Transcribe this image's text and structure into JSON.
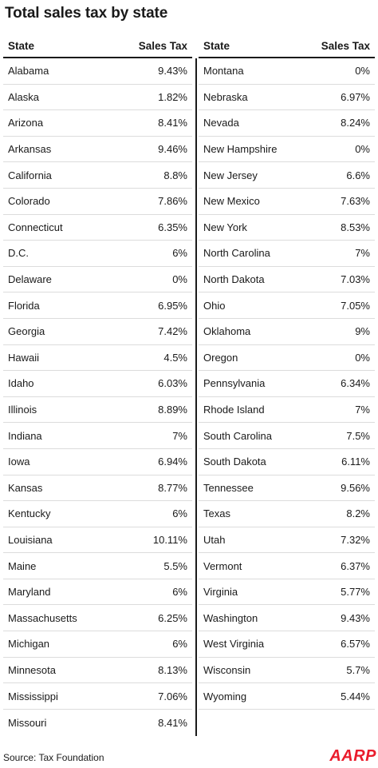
{
  "title": "Total sales tax by state",
  "header": {
    "state": "State",
    "tax": "Sales Tax"
  },
  "left": [
    {
      "state": "Alabama",
      "tax": "9.43%"
    },
    {
      "state": "Alaska",
      "tax": "1.82%"
    },
    {
      "state": "Arizona",
      "tax": "8.41%"
    },
    {
      "state": "Arkansas",
      "tax": "9.46%"
    },
    {
      "state": "California",
      "tax": "8.8%"
    },
    {
      "state": "Colorado",
      "tax": "7.86%"
    },
    {
      "state": "Connecticut",
      "tax": "6.35%"
    },
    {
      "state": "D.C.",
      "tax": "6%"
    },
    {
      "state": "Delaware",
      "tax": "0%"
    },
    {
      "state": "Florida",
      "tax": "6.95%"
    },
    {
      "state": "Georgia",
      "tax": "7.42%"
    },
    {
      "state": "Hawaii",
      "tax": "4.5%"
    },
    {
      "state": "Idaho",
      "tax": "6.03%"
    },
    {
      "state": "Illinois",
      "tax": "8.89%"
    },
    {
      "state": "Indiana",
      "tax": "7%"
    },
    {
      "state": "Iowa",
      "tax": "6.94%"
    },
    {
      "state": "Kansas",
      "tax": "8.77%"
    },
    {
      "state": "Kentucky",
      "tax": "6%"
    },
    {
      "state": "Louisiana",
      "tax": "10.11%"
    },
    {
      "state": "Maine",
      "tax": "5.5%"
    },
    {
      "state": "Maryland",
      "tax": "6%"
    },
    {
      "state": "Massachusetts",
      "tax": "6.25%"
    },
    {
      "state": "Michigan",
      "tax": "6%"
    },
    {
      "state": "Minnesota",
      "tax": "8.13%"
    },
    {
      "state": "Mississippi",
      "tax": "7.06%"
    },
    {
      "state": "Missouri",
      "tax": "8.41%"
    }
  ],
  "right": [
    {
      "state": "Montana",
      "tax": "0%"
    },
    {
      "state": "Nebraska",
      "tax": "6.97%"
    },
    {
      "state": "Nevada",
      "tax": "8.24%"
    },
    {
      "state": "New Hampshire",
      "tax": "0%"
    },
    {
      "state": "New Jersey",
      "tax": "6.6%"
    },
    {
      "state": "New Mexico",
      "tax": "7.63%"
    },
    {
      "state": "New York",
      "tax": "8.53%"
    },
    {
      "state": "North Carolina",
      "tax": "7%"
    },
    {
      "state": "North Dakota",
      "tax": "7.03%"
    },
    {
      "state": "Ohio",
      "tax": "7.05%"
    },
    {
      "state": "Oklahoma",
      "tax": "9%"
    },
    {
      "state": "Oregon",
      "tax": "0%"
    },
    {
      "state": "Pennsylvania",
      "tax": "6.34%"
    },
    {
      "state": "Rhode Island",
      "tax": "7%"
    },
    {
      "state": "South Carolina",
      "tax": "7.5%"
    },
    {
      "state": "South Dakota",
      "tax": "6.11%"
    },
    {
      "state": "Tennessee",
      "tax": "9.56%"
    },
    {
      "state": "Texas",
      "tax": "8.2%"
    },
    {
      "state": "Utah",
      "tax": "7.32%"
    },
    {
      "state": "Vermont",
      "tax": "6.37%"
    },
    {
      "state": "Virginia",
      "tax": "5.77%"
    },
    {
      "state": "Washington",
      "tax": "9.43%"
    },
    {
      "state": "West Virginia",
      "tax": "6.57%"
    },
    {
      "state": "Wisconsin",
      "tax": "5.7%"
    },
    {
      "state": "Wyoming",
      "tax": "5.44%"
    },
    {
      "state": "",
      "tax": ""
    }
  ],
  "source": "Source: Tax Foundation",
  "logo": {
    "text": "AARP",
    "color": "#ea1c2c"
  }
}
